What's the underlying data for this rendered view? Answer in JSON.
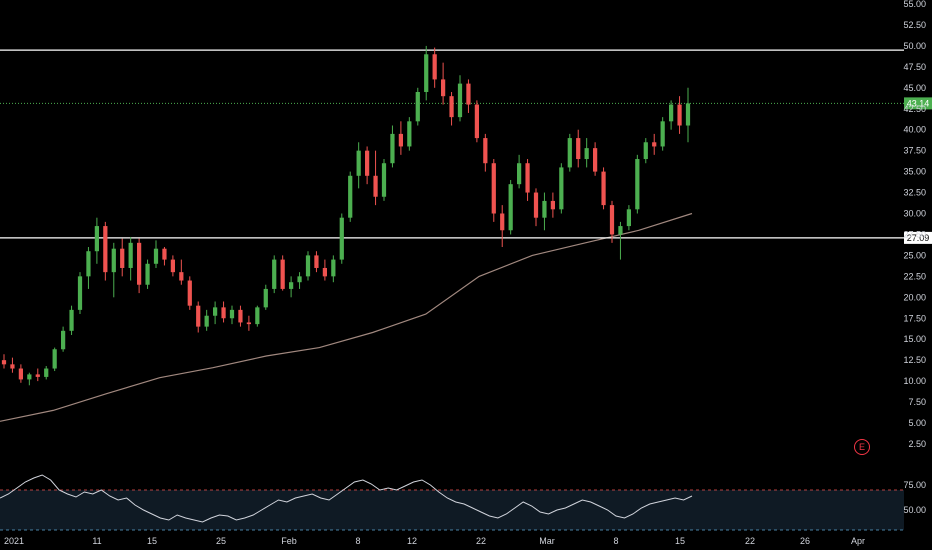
{
  "colors": {
    "background": "#000000",
    "bull": "#26a69a",
    "bull_bright": "#4caf50",
    "bear": "#ef5350",
    "ma": "#a1887f",
    "hline": "#ffffff",
    "last_price": "#4caf50",
    "rsi_line": "#d1d4dc",
    "rsi_band_top": "#ef5350",
    "rsi_band_bottom": "#5fa8d3",
    "earnings": "#f23645"
  },
  "earnings_badge": {
    "label": "E",
    "icon": "earnings-icon"
  },
  "chart_data": [
    {
      "type": "candlestick",
      "title": "",
      "ylim": [
        0,
        55
      ],
      "y_ticks": [
        "55.00",
        "52.50",
        "50.00",
        "47.50",
        "45.00",
        "42.50",
        "40.00",
        "37.50",
        "35.00",
        "32.50",
        "30.00",
        "27.50",
        "25.00",
        "22.50",
        "20.00",
        "17.50",
        "15.00",
        "12.50",
        "10.00",
        "7.50",
        "5.00",
        "2.50"
      ],
      "x_ticks": [
        "2021",
        "11",
        "15",
        "25",
        "Feb",
        "8",
        "12",
        "22",
        "Mar",
        "8",
        "15",
        "22",
        "26",
        "Apr"
      ],
      "horizontal_lines": [
        {
          "value": 49.5,
          "label": ""
        },
        {
          "value": 27.09,
          "label": "27.09"
        }
      ],
      "last_price": {
        "value": 43.14,
        "label": "43.14"
      },
      "moving_average": {
        "start": 5.2,
        "end": 30.0,
        "values": [
          5.2,
          6.5,
          8.5,
          10.4,
          11.6,
          13.0,
          14.0,
          15.8,
          18.0,
          22.5,
          25.0,
          26.5,
          28.0,
          30.0
        ]
      },
      "candles": [
        {
          "o": 12.5,
          "h": 13.2,
          "l": 11.5,
          "c": 12.0
        },
        {
          "o": 12.0,
          "h": 12.8,
          "l": 11.0,
          "c": 11.5
        },
        {
          "o": 11.5,
          "h": 12.0,
          "l": 9.8,
          "c": 10.2
        },
        {
          "o": 10.2,
          "h": 11.0,
          "l": 9.5,
          "c": 10.8
        },
        {
          "o": 10.8,
          "h": 11.5,
          "l": 10.0,
          "c": 10.5
        },
        {
          "o": 10.5,
          "h": 11.8,
          "l": 10.2,
          "c": 11.5
        },
        {
          "o": 11.5,
          "h": 14.0,
          "l": 11.2,
          "c": 13.8
        },
        {
          "o": 13.8,
          "h": 16.5,
          "l": 13.5,
          "c": 16.0
        },
        {
          "o": 16.0,
          "h": 19.0,
          "l": 15.5,
          "c": 18.5
        },
        {
          "o": 18.5,
          "h": 23.0,
          "l": 18.0,
          "c": 22.5
        },
        {
          "o": 22.5,
          "h": 26.0,
          "l": 21.0,
          "c": 25.5
        },
        {
          "o": 25.5,
          "h": 29.5,
          "l": 24.0,
          "c": 28.5
        },
        {
          "o": 28.5,
          "h": 29.0,
          "l": 22.0,
          "c": 23.0
        },
        {
          "o": 23.0,
          "h": 26.5,
          "l": 20.0,
          "c": 25.8
        },
        {
          "o": 25.8,
          "h": 27.0,
          "l": 22.5,
          "c": 23.5
        },
        {
          "o": 23.5,
          "h": 27.2,
          "l": 22.0,
          "c": 26.5
        },
        {
          "o": 26.5,
          "h": 27.0,
          "l": 20.5,
          "c": 21.5
        },
        {
          "o": 21.5,
          "h": 24.5,
          "l": 21.0,
          "c": 24.0
        },
        {
          "o": 24.0,
          "h": 26.8,
          "l": 23.5,
          "c": 25.8
        },
        {
          "o": 25.8,
          "h": 26.0,
          "l": 23.8,
          "c": 24.5
        },
        {
          "o": 24.5,
          "h": 25.0,
          "l": 22.5,
          "c": 23.0
        },
        {
          "o": 23.0,
          "h": 24.5,
          "l": 21.5,
          "c": 22.0
        },
        {
          "o": 22.0,
          "h": 22.5,
          "l": 18.5,
          "c": 19.0
        },
        {
          "o": 19.0,
          "h": 19.5,
          "l": 15.8,
          "c": 16.5
        },
        {
          "o": 16.5,
          "h": 18.5,
          "l": 16.0,
          "c": 17.8
        },
        {
          "o": 17.8,
          "h": 19.5,
          "l": 16.8,
          "c": 18.8
        },
        {
          "o": 18.8,
          "h": 19.5,
          "l": 17.0,
          "c": 17.5
        },
        {
          "o": 17.5,
          "h": 19.0,
          "l": 16.8,
          "c": 18.5
        },
        {
          "o": 18.5,
          "h": 19.0,
          "l": 16.5,
          "c": 17.0
        },
        {
          "o": 17.0,
          "h": 17.8,
          "l": 16.0,
          "c": 16.8
        },
        {
          "o": 16.8,
          "h": 19.0,
          "l": 16.5,
          "c": 18.8
        },
        {
          "o": 18.8,
          "h": 21.5,
          "l": 18.5,
          "c": 21.0
        },
        {
          "o": 21.0,
          "h": 25.0,
          "l": 20.5,
          "c": 24.5
        },
        {
          "o": 24.5,
          "h": 25.0,
          "l": 20.8,
          "c": 21.0
        },
        {
          "o": 21.0,
          "h": 22.5,
          "l": 20.0,
          "c": 21.8
        },
        {
          "o": 21.8,
          "h": 23.0,
          "l": 21.0,
          "c": 22.5
        },
        {
          "o": 22.5,
          "h": 25.5,
          "l": 22.0,
          "c": 25.0
        },
        {
          "o": 25.0,
          "h": 25.5,
          "l": 23.0,
          "c": 23.5
        },
        {
          "o": 23.5,
          "h": 24.5,
          "l": 22.0,
          "c": 22.5
        },
        {
          "o": 22.5,
          "h": 25.0,
          "l": 21.8,
          "c": 24.5
        },
        {
          "o": 24.5,
          "h": 30.0,
          "l": 24.0,
          "c": 29.5
        },
        {
          "o": 29.5,
          "h": 35.0,
          "l": 29.0,
          "c": 34.5
        },
        {
          "o": 34.5,
          "h": 38.5,
          "l": 33.0,
          "c": 37.5
        },
        {
          "o": 37.5,
          "h": 38.0,
          "l": 33.5,
          "c": 34.5
        },
        {
          "o": 34.5,
          "h": 37.5,
          "l": 31.0,
          "c": 32.0
        },
        {
          "o": 32.0,
          "h": 36.5,
          "l": 31.5,
          "c": 36.0
        },
        {
          "o": 36.0,
          "h": 40.5,
          "l": 35.5,
          "c": 39.5
        },
        {
          "o": 39.5,
          "h": 41.0,
          "l": 37.0,
          "c": 38.0
        },
        {
          "o": 38.0,
          "h": 41.5,
          "l": 37.5,
          "c": 41.0
        },
        {
          "o": 41.0,
          "h": 45.0,
          "l": 40.5,
          "c": 44.5
        },
        {
          "o": 44.5,
          "h": 50.0,
          "l": 43.5,
          "c": 49.0
        },
        {
          "o": 49.0,
          "h": 49.8,
          "l": 45.0,
          "c": 46.0
        },
        {
          "o": 46.0,
          "h": 48.0,
          "l": 43.0,
          "c": 44.0
        },
        {
          "o": 44.0,
          "h": 44.5,
          "l": 40.5,
          "c": 41.5
        },
        {
          "o": 41.5,
          "h": 46.5,
          "l": 41.0,
          "c": 45.5
        },
        {
          "o": 45.5,
          "h": 46.0,
          "l": 42.0,
          "c": 43.0
        },
        {
          "o": 43.0,
          "h": 43.5,
          "l": 38.5,
          "c": 39.0
        },
        {
          "o": 39.0,
          "h": 39.5,
          "l": 35.0,
          "c": 36.0
        },
        {
          "o": 36.0,
          "h": 36.5,
          "l": 29.0,
          "c": 30.0
        },
        {
          "o": 30.0,
          "h": 31.0,
          "l": 26.0,
          "c": 28.0
        },
        {
          "o": 28.0,
          "h": 34.0,
          "l": 27.5,
          "c": 33.5
        },
        {
          "o": 33.5,
          "h": 37.0,
          "l": 33.0,
          "c": 36.0
        },
        {
          "o": 36.0,
          "h": 36.5,
          "l": 31.5,
          "c": 32.5
        },
        {
          "o": 32.5,
          "h": 33.0,
          "l": 28.5,
          "c": 29.5
        },
        {
          "o": 29.5,
          "h": 32.5,
          "l": 28.0,
          "c": 31.5
        },
        {
          "o": 31.5,
          "h": 32.5,
          "l": 29.5,
          "c": 30.5
        },
        {
          "o": 30.5,
          "h": 36.0,
          "l": 30.0,
          "c": 35.5
        },
        {
          "o": 35.5,
          "h": 39.5,
          "l": 35.0,
          "c": 39.0
        },
        {
          "o": 39.0,
          "h": 40.0,
          "l": 35.5,
          "c": 36.5
        },
        {
          "o": 36.5,
          "h": 39.0,
          "l": 35.5,
          "c": 37.8
        },
        {
          "o": 37.8,
          "h": 38.5,
          "l": 34.5,
          "c": 35.0
        },
        {
          "o": 35.0,
          "h": 35.5,
          "l": 30.5,
          "c": 31.0
        },
        {
          "o": 31.0,
          "h": 31.5,
          "l": 26.5,
          "c": 27.5
        },
        {
          "o": 27.5,
          "h": 29.0,
          "l": 24.5,
          "c": 28.5
        },
        {
          "o": 28.5,
          "h": 31.0,
          "l": 28.0,
          "c": 30.5
        },
        {
          "o": 30.5,
          "h": 37.0,
          "l": 30.0,
          "c": 36.5
        },
        {
          "o": 36.5,
          "h": 39.0,
          "l": 36.0,
          "c": 38.5
        },
        {
          "o": 38.5,
          "h": 39.5,
          "l": 37.0,
          "c": 38.0
        },
        {
          "o": 38.0,
          "h": 41.5,
          "l": 37.5,
          "c": 41.0
        },
        {
          "o": 41.0,
          "h": 43.5,
          "l": 40.0,
          "c": 43.0
        },
        {
          "o": 43.0,
          "h": 44.0,
          "l": 39.5,
          "c": 40.5
        },
        {
          "o": 40.5,
          "h": 45.0,
          "l": 38.5,
          "c": 43.14
        }
      ]
    },
    {
      "type": "line",
      "title": "",
      "ylim": [
        30,
        90
      ],
      "y_ticks": [
        "75.00",
        "50.00"
      ],
      "bands": {
        "upper": 70,
        "lower": 30
      },
      "values": [
        62,
        66,
        72,
        78,
        82,
        85,
        80,
        70,
        66,
        63,
        68,
        66,
        70,
        64,
        60,
        62,
        55,
        50,
        46,
        42,
        40,
        45,
        42,
        40,
        38,
        42,
        45,
        44,
        40,
        42,
        45,
        50,
        55,
        60,
        58,
        62,
        64,
        66,
        62,
        60,
        66,
        72,
        78,
        80,
        76,
        70,
        72,
        70,
        74,
        78,
        80,
        75,
        68,
        62,
        58,
        56,
        52,
        48,
        44,
        42,
        46,
        52,
        58,
        54,
        48,
        46,
        50,
        52,
        56,
        60,
        58,
        54,
        50,
        44,
        42,
        46,
        52,
        56,
        58,
        60,
        62,
        60,
        64
      ]
    }
  ]
}
